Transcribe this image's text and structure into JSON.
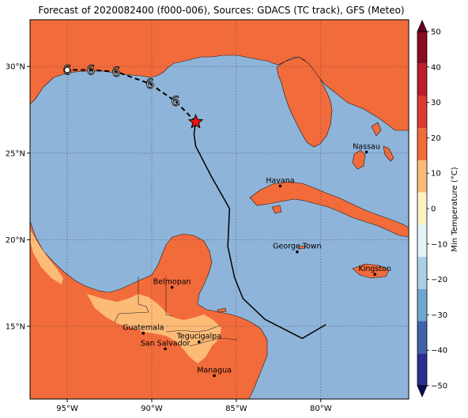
{
  "title": "Forecast of 2020082400 (f000-006), Sources: GDACS (TC track), GFS (Meteo)",
  "map": {
    "projection": "cylindrical",
    "lon_range": [
      -97.2,
      -74.8
    ],
    "lat_range": [
      10.8,
      32.7
    ],
    "ocean_color": "#8fb4d9",
    "land_color": "#f26b3a",
    "warm_land_color": "#fdbb78",
    "gridlines": "dotted",
    "lon_ticks": [
      {
        "lon": -95,
        "label": "95°W"
      },
      {
        "lon": -90,
        "label": "90°W"
      },
      {
        "lon": -85,
        "label": "85°W"
      },
      {
        "lon": -80,
        "label": "80°W"
      }
    ],
    "lat_ticks": [
      {
        "lat": 30,
        "label": "30°N"
      },
      {
        "lat": 25,
        "label": "25°N"
      },
      {
        "lat": 20,
        "label": "20°N"
      },
      {
        "lat": 15,
        "label": "15°N"
      }
    ],
    "cities": [
      {
        "name": "Havana",
        "lon": -82.4,
        "lat": 23.1
      },
      {
        "name": "Nassau",
        "lon": -77.3,
        "lat": 25.06
      },
      {
        "name": "George Town",
        "lon": -81.4,
        "lat": 19.3
      },
      {
        "name": "Kingston",
        "lon": -76.8,
        "lat": 18.0
      },
      {
        "name": "Belmopan",
        "lon": -88.8,
        "lat": 17.25
      },
      {
        "name": "Guatemala",
        "lon": -90.5,
        "lat": 14.6
      },
      {
        "name": "Tegucigalpa",
        "lon": -87.2,
        "lat": 14.1
      },
      {
        "name": "San Salvador",
        "lon": -89.2,
        "lat": 13.7
      },
      {
        "name": "Managua",
        "lon": -86.3,
        "lat": 12.15
      }
    ],
    "storm_track": {
      "past": [
        [
          -79.7,
          15.1
        ],
        [
          -81.1,
          14.3
        ],
        [
          -83.3,
          15.4
        ],
        [
          -84.6,
          16.6
        ],
        [
          -85.1,
          17.8
        ],
        [
          -85.5,
          19.6
        ],
        [
          -85.4,
          21.8
        ],
        [
          -86.5,
          23.7
        ],
        [
          -87.4,
          25.4
        ],
        [
          -87.5,
          26.1
        ],
        [
          -87.4,
          26.8
        ]
      ],
      "current": [
        -87.4,
        26.8
      ],
      "forecast": [
        [
          -87.4,
          26.8
        ],
        [
          -88.6,
          28.0
        ],
        [
          -90.1,
          29.0
        ],
        [
          -92.1,
          29.7
        ],
        [
          -93.6,
          29.8
        ],
        [
          -95.0,
          29.8
        ]
      ],
      "forecast_symbols": [
        [
          -88.6,
          28.0
        ],
        [
          -90.1,
          29.0
        ],
        [
          -92.1,
          29.7
        ],
        [
          -93.6,
          29.8
        ],
        [
          -95.0,
          29.8
        ]
      ],
      "symbol": "6"
    }
  },
  "colorbar": {
    "label": "Min Temperature (°C)",
    "min": -50,
    "max": 50,
    "ticks": [
      "50",
      "40",
      "30",
      "20",
      "10",
      "0",
      "−10",
      "−20",
      "−30",
      "−40",
      "−50"
    ],
    "colors": [
      "#8b0a20",
      "#bb1e2a",
      "#dc3d2e",
      "#f26b3a",
      "#fdbb78",
      "#fef2c4",
      "#e5f4f9",
      "#a9d1e5",
      "#6ea7cd",
      "#3e63a8",
      "#2a2f8f"
    ]
  }
}
